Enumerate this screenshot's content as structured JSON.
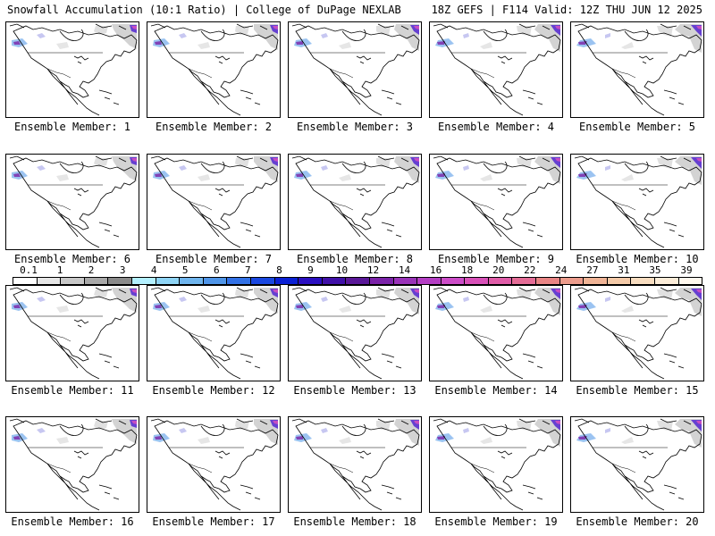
{
  "header": {
    "left": "Snowfall Accumulation (10:1 Ratio) | College of DuPage NEXLAB",
    "right": "18Z GEFS | F114 Valid: 12Z THU JUN 12 2025"
  },
  "legend": {
    "ticks": [
      "0.1",
      "1",
      "2",
      "3",
      "4",
      "5",
      "6",
      "7",
      "8",
      "9",
      "10",
      "12",
      "14",
      "16",
      "18",
      "20",
      "22",
      "24",
      "27",
      "31",
      "35",
      "39"
    ],
    "colors": [
      "#ffffff",
      "#e6e6e6",
      "#c8c8c8",
      "#a9a9a9",
      "#8a8a8a",
      "#b3f0ff",
      "#8ed4f5",
      "#6fb5ee",
      "#4f95e8",
      "#3271e6",
      "#1947e0",
      "#0a20d4",
      "#2a0fc0",
      "#4010a8",
      "#5a1898",
      "#7a22a8",
      "#9932b8",
      "#b43ec4",
      "#cc4cc8",
      "#d850b8",
      "#e05ca8",
      "#e46c96",
      "#e88484",
      "#ec9c8c",
      "#f0b496",
      "#f4caa8",
      "#f8ddc0",
      "#fbecd8",
      "#fff8ee"
    ]
  },
  "panels": [
    {
      "label": "Ensemble Member: 1"
    },
    {
      "label": "Ensemble Member: 2"
    },
    {
      "label": "Ensemble Member: 3"
    },
    {
      "label": "Ensemble Member: 4"
    },
    {
      "label": "Ensemble Member: 5"
    },
    {
      "label": "Ensemble Member: 6"
    },
    {
      "label": "Ensemble Member: 7"
    },
    {
      "label": "Ensemble Member: 8"
    },
    {
      "label": "Ensemble Member: 9"
    },
    {
      "label": "Ensemble Member: 10"
    },
    {
      "label": "Ensemble Member: 11"
    },
    {
      "label": "Ensemble Member: 12"
    },
    {
      "label": "Ensemble Member: 13"
    },
    {
      "label": "Ensemble Member: 14"
    },
    {
      "label": "Ensemble Member: 15"
    },
    {
      "label": "Ensemble Member: 16"
    },
    {
      "label": "Ensemble Member: 17"
    },
    {
      "label": "Ensemble Member: 18"
    },
    {
      "label": "Ensemble Member: 19"
    },
    {
      "label": "Ensemble Member: 20"
    }
  ]
}
